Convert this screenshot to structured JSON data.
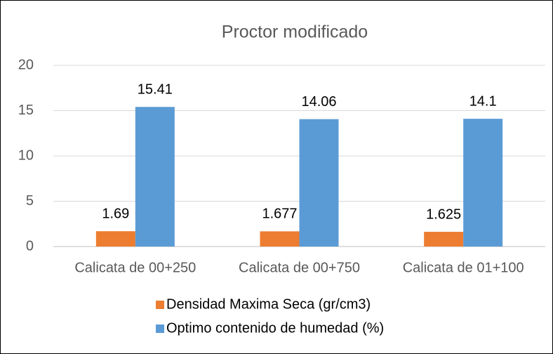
{
  "chart_data": {
    "type": "bar",
    "title": "Proctor modificado",
    "categories": [
      "Calicata de 00+250",
      "Calicata de 00+750",
      "Calicata de 01+100"
    ],
    "series": [
      {
        "name": "Densidad Maxima Seca (gr/cm3)",
        "color": "#ed7d31",
        "values": [
          1.69,
          1.677,
          1.625
        ]
      },
      {
        "name": "Optimo contenido de humedad (%)",
        "color": "#5b9bd5",
        "values": [
          15.41,
          14.06,
          14.1
        ]
      }
    ],
    "ylim": [
      0,
      20
    ],
    "yticks": [
      0,
      5,
      10,
      15,
      20
    ],
    "grid": true,
    "legend": "bottom"
  }
}
